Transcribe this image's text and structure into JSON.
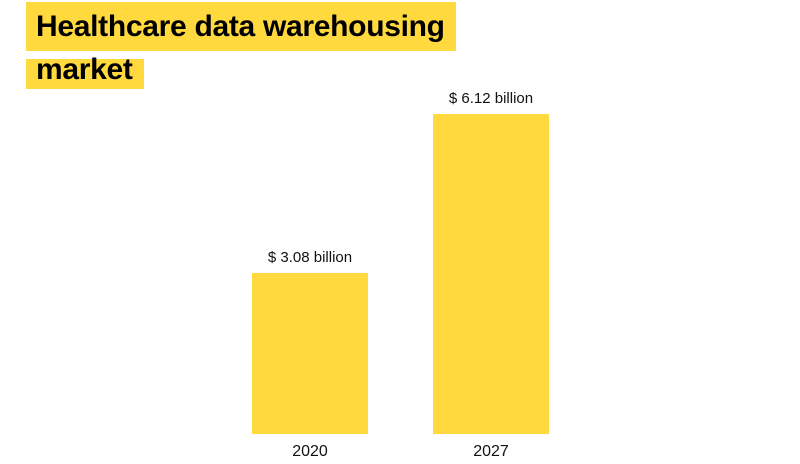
{
  "title": {
    "line1": "Healthcare data warehousing",
    "line2": "market"
  },
  "colors": {
    "bar": "#FFD93D",
    "title_bg": "#FFD93D",
    "text": "#111111"
  },
  "chart_data": {
    "type": "bar",
    "title": "Healthcare data warehousing market",
    "categories": [
      "2020",
      "2027"
    ],
    "values": [
      3.08,
      6.12
    ],
    "value_labels": [
      "$ 3.08 billion",
      "$ 6.12 billion"
    ],
    "unit": "billion USD",
    "xlabel": "",
    "ylabel": "",
    "ylim": [
      0,
      6.12
    ],
    "grid": false,
    "legend": "none"
  }
}
